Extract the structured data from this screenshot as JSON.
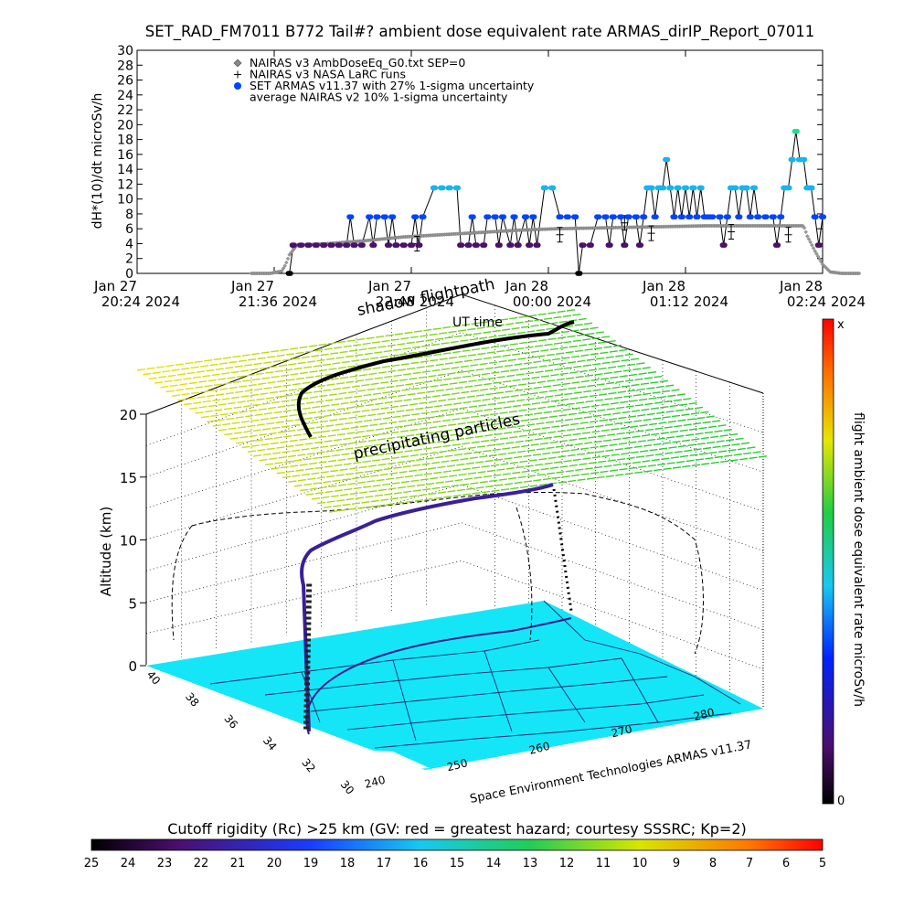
{
  "chart_data": [
    {
      "type": "scatter",
      "title": "SET_RAD_FM7011  B772 Tail#? ambient dose equivalent rate ARMAS_dirIP_Report_07011",
      "ylabel": "dH*(10)/dt microSv/h",
      "ylim": [
        0,
        30
      ],
      "yticks": [
        0,
        2,
        4,
        6,
        8,
        10,
        12,
        14,
        16,
        18,
        20,
        22,
        24,
        26,
        28,
        30
      ],
      "xticks": [
        {
          "l1": "Jan 27",
          "l2": "20:24 2024"
        },
        {
          "l1": "Jan 27",
          "l2": "21:36 2024"
        },
        {
          "l1": "Jan 27",
          "l2": "22:48 2024"
        },
        {
          "l1": "Jan 28",
          "l2": "00:00 2024"
        },
        {
          "l1": "Jan 28",
          "l2": "01:12 2024"
        },
        {
          "l1": "Jan 28",
          "l2": "02:24 2024"
        }
      ],
      "xlim_minutes_from_first_tick": [
        0,
        360
      ],
      "legend": [
        {
          "symbol": "diamond",
          "label": "NAIRAS v3 AmbDoseEq_G0.txt SEP=0"
        },
        {
          "symbol": "plus",
          "label": "NAIRAS v3 NASA LaRC runs"
        },
        {
          "symbol": "dot",
          "label": "SET ARMAS v11.37 with 27% 1-sigma uncertainty"
        },
        {
          "symbol": "none",
          "label": "average NAIRAS v2 10% 1-sigma uncertainty"
        }
      ],
      "series": [
        {
          "name": "SET ARMAS v11.37 with 27% 1-sigma uncertainty",
          "points": [
            [
              80,
              0
            ],
            [
              82,
              3.8
            ],
            [
              86,
              3.8
            ],
            [
              90,
              3.8
            ],
            [
              94,
              3.8
            ],
            [
              98,
              3.8
            ],
            [
              102,
              3.8
            ],
            [
              106,
              3.8
            ],
            [
              110,
              3.8
            ],
            [
              112,
              7.6
            ],
            [
              114,
              3.8
            ],
            [
              118,
              3.8
            ],
            [
              122,
              7.6
            ],
            [
              124,
              3.8
            ],
            [
              126,
              7.6
            ],
            [
              130,
              7.6
            ],
            [
              132,
              3.8
            ],
            [
              134,
              7.6
            ],
            [
              136,
              3.8
            ],
            [
              140,
              3.8
            ],
            [
              144,
              3.8
            ],
            [
              146,
              7.6
            ],
            [
              148,
              3.8
            ],
            [
              150,
              7.6
            ],
            [
              156,
              11.5
            ],
            [
              160,
              11.5
            ],
            [
              164,
              11.5
            ],
            [
              168,
              11.5
            ],
            [
              170,
              3.8
            ],
            [
              174,
              3.8
            ],
            [
              176,
              7.6
            ],
            [
              178,
              3.8
            ],
            [
              182,
              3.8
            ],
            [
              184,
              7.6
            ],
            [
              188,
              7.6
            ],
            [
              190,
              3.8
            ],
            [
              192,
              7.6
            ],
            [
              196,
              3.8
            ],
            [
              198,
              7.6
            ],
            [
              200,
              3.8
            ],
            [
              204,
              7.6
            ],
            [
              206,
              3.8
            ],
            [
              208,
              7.6
            ],
            [
              210,
              3.8
            ],
            [
              214,
              11.5
            ],
            [
              218,
              11.5
            ],
            [
              222,
              7.6
            ],
            [
              226,
              7.6
            ],
            [
              230,
              7.6
            ],
            [
              232,
              0
            ],
            [
              234,
              3.8
            ],
            [
              238,
              3.8
            ],
            [
              242,
              7.6
            ],
            [
              246,
              7.6
            ],
            [
              248,
              3.8
            ],
            [
              250,
              7.6
            ],
            [
              254,
              7.6
            ],
            [
              256,
              3.8
            ],
            [
              258,
              7.6
            ],
            [
              262,
              7.6
            ],
            [
              264,
              3.8
            ],
            [
              266,
              7.6
            ],
            [
              268,
              11.5
            ],
            [
              270,
              11.5
            ],
            [
              272,
              7.6
            ],
            [
              274,
              11.5
            ],
            [
              276,
              11.5
            ],
            [
              278,
              15.3
            ],
            [
              280,
              11.5
            ],
            [
              282,
              7.6
            ],
            [
              284,
              11.5
            ],
            [
              286,
              7.6
            ],
            [
              288,
              11.5
            ],
            [
              290,
              7.6
            ],
            [
              292,
              11.5
            ],
            [
              294,
              7.6
            ],
            [
              296,
              11.5
            ],
            [
              298,
              7.6
            ],
            [
              300,
              7.6
            ],
            [
              302,
              7.6
            ],
            [
              306,
              7.6
            ],
            [
              308,
              3.8
            ],
            [
              310,
              7.6
            ],
            [
              312,
              11.5
            ],
            [
              314,
              11.5
            ],
            [
              316,
              7.6
            ],
            [
              318,
              11.5
            ],
            [
              320,
              11.5
            ],
            [
              322,
              7.6
            ],
            [
              324,
              11.5
            ],
            [
              326,
              7.6
            ],
            [
              330,
              7.6
            ],
            [
              334,
              7.6
            ],
            [
              336,
              3.8
            ],
            [
              338,
              7.6
            ],
            [
              340,
              11.5
            ],
            [
              342,
              11.5
            ],
            [
              344,
              15.3
            ],
            [
              346,
              19.1
            ],
            [
              348,
              15.3
            ],
            [
              350,
              15.3
            ],
            [
              352,
              11.5
            ],
            [
              354,
              11.5
            ],
            [
              356,
              7.6
            ],
            [
              358,
              3.8
            ],
            [
              360,
              7.6
            ]
          ]
        },
        {
          "name": "NAIRAS v3 AmbDoseEq_G0.txt SEP=0",
          "points": [
            [
              60,
              0
            ],
            [
              70,
              0
            ],
            [
              76,
              0.3
            ],
            [
              78,
              1.2
            ],
            [
              80,
              2.5
            ],
            [
              84,
              3.8
            ],
            [
              100,
              4.0
            ],
            [
              120,
              4.4
            ],
            [
              140,
              4.9
            ],
            [
              160,
              5.2
            ],
            [
              180,
              5.5
            ],
            [
              200,
              5.8
            ],
            [
              220,
              6.0
            ],
            [
              240,
              6.1
            ],
            [
              260,
              6.2
            ],
            [
              280,
              6.3
            ],
            [
              300,
              6.4
            ],
            [
              320,
              6.4
            ],
            [
              340,
              6.4
            ],
            [
              345,
              6.4
            ],
            [
              350,
              6.4
            ],
            [
              352,
              5.0
            ],
            [
              356,
              3.0
            ],
            [
              360,
              1.2
            ],
            [
              364,
              0.2
            ],
            [
              370,
              0
            ],
            [
              380,
              0
            ]
          ]
        },
        {
          "name": "NAIRAS v3 NASA LaRC runs",
          "points": [
            [
              147,
              4.0
            ],
            [
              222,
              5.2
            ],
            [
              256,
              6.8
            ],
            [
              270,
              5.4
            ],
            [
              312,
              5.6
            ],
            [
              342,
              5.2
            ]
          ]
        }
      ]
    },
    {
      "type": "scatter",
      "title": "",
      "zlabel": "Altitude (km)",
      "zlim": [
        0,
        20
      ],
      "zticks": [
        0,
        5,
        10,
        15,
        20
      ],
      "lat_ticks": [
        40,
        38,
        36,
        34,
        32,
        30
      ],
      "lon_ticks": [
        240,
        250,
        260,
        270,
        280
      ],
      "annotations": [
        "shadow flightpath",
        "UT time",
        "precipitating particles",
        "Space Environment Technologies ARMAS v11.37"
      ],
      "colorbar_title": "flight ambient dose equivalent rate microSv/h",
      "colorbar_range_labels": [
        "0",
        "x"
      ]
    }
  ],
  "rigidity_bar": {
    "title": "Cutoff rigidity (Rc) >25 km (GV: red = greatest hazard; courtesy SSSRC; Kp=2)",
    "ticks": [
      "25",
      "24",
      "23",
      "22",
      "21",
      "20",
      "19",
      "18",
      "17",
      "16",
      "15",
      "14",
      "13",
      "12",
      "11",
      "10",
      "9",
      "8",
      "7",
      "6",
      "5"
    ]
  },
  "colors": {
    "map_fill": "#14e6f8",
    "flight_dark": "#2a1a8c",
    "flight_black": "#000000",
    "sheet_yellow": "#e6e600",
    "sheet_green": "#33cc33",
    "low_dose": "#4b0f6e",
    "mid_dose": "#0044ff",
    "high_dose": "#18b4f0",
    "peak_dose": "#22dd88"
  }
}
